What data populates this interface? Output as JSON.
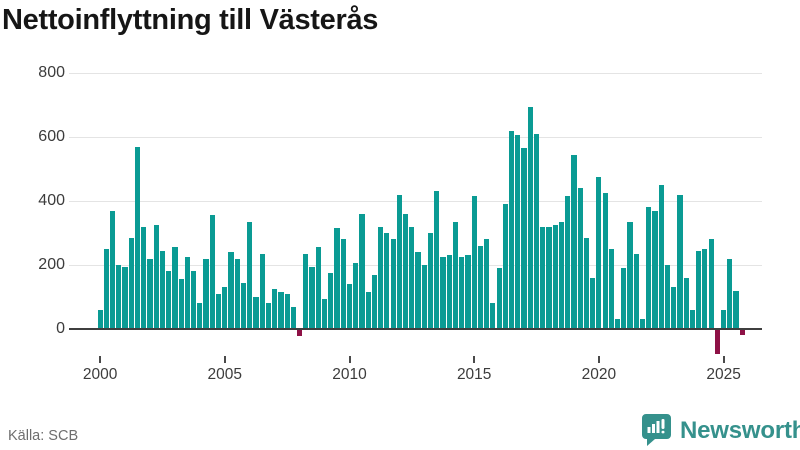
{
  "title": "Nettoinflyttning till Västerås",
  "source": "Källa: SCB",
  "branding": {
    "name": "Newsworthy"
  },
  "colors": {
    "bar_positive": "#0a9b94",
    "bar_negative": "#8e1146",
    "logo_teal": "#35918c",
    "title_text": "#161616",
    "axis_text": "#3c3c3c",
    "source_text": "#6e6e6e",
    "gridline": "#e4e4e4",
    "zero_line": "#3f3f3f"
  },
  "chart_data": {
    "type": "bar",
    "title": "Nettoinflyttning till Västerås",
    "xlabel": "",
    "ylabel": "",
    "frequency": "quarterly",
    "start_period": "2000-Q1",
    "end_period": "2025-Q4",
    "ylim": [
      -100,
      820
    ],
    "grid": "horizontal",
    "legend_position": "none",
    "y_ticks": [
      0,
      200,
      400,
      600,
      800
    ],
    "y_tick_labels": [
      "0",
      "200",
      "400",
      "600",
      "800"
    ],
    "x_tick_labels": [
      "2000",
      "2005",
      "2010",
      "2015",
      "2020",
      "2025"
    ],
    "x_tick_quarter_indices": [
      0,
      20,
      40,
      60,
      80,
      100
    ],
    "values": [
      60,
      250,
      370,
      200,
      195,
      285,
      570,
      320,
      220,
      325,
      245,
      180,
      255,
      155,
      225,
      180,
      80,
      220,
      355,
      110,
      130,
      240,
      220,
      145,
      335,
      100,
      235,
      80,
      125,
      115,
      110,
      70,
      -20,
      235,
      195,
      255,
      95,
      175,
      315,
      280,
      140,
      205,
      360,
      115,
      170,
      320,
      300,
      280,
      420,
      360,
      320,
      240,
      200,
      300,
      430,
      225,
      230,
      335,
      225,
      230,
      415,
      260,
      280,
      80,
      190,
      390,
      620,
      605,
      565,
      695,
      610,
      320,
      320,
      325,
      335,
      415,
      545,
      440,
      285,
      160,
      475,
      425,
      250,
      30,
      190,
      335,
      235,
      30,
      380,
      370,
      450,
      200,
      130,
      420,
      160,
      60,
      245,
      250,
      280,
      -75,
      60,
      220,
      120,
      -15
    ]
  }
}
